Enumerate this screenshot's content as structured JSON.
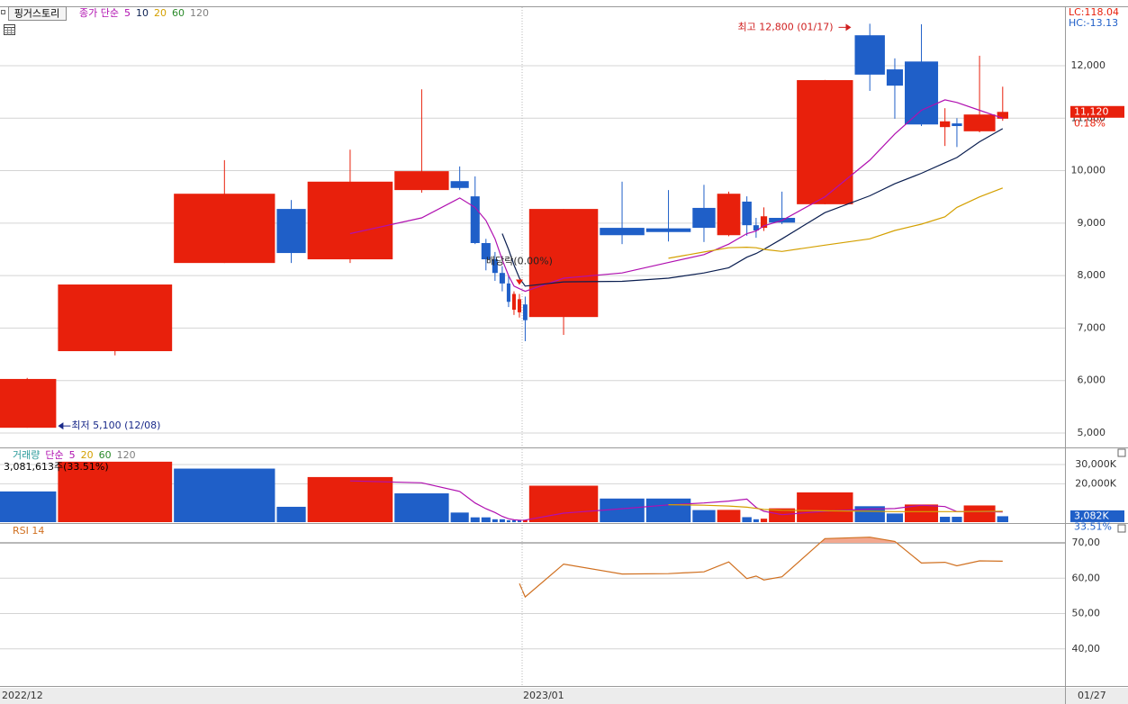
{
  "chart_data": {
    "type": "candlestick",
    "title": "핑거스토리",
    "price_legend_prefix": "종가 단순",
    "categories": [
      "2022/12",
      null,
      null,
      null,
      null,
      null,
      null,
      null,
      null,
      null,
      null,
      null,
      null,
      null,
      "2023/01",
      null,
      null,
      null,
      null,
      null,
      null,
      null,
      null,
      null,
      null,
      null,
      null,
      null,
      null,
      null,
      null,
      null
    ],
    "open": [
      5100,
      6560,
      8240,
      9270,
      8310,
      9630,
      9800,
      9510,
      8620,
      8310,
      8050,
      7850,
      7350,
      7300,
      7450,
      7210,
      8910,
      8900,
      9290,
      8770,
      9410,
      8960,
      8910,
      9100,
      9360,
      12580,
      11930,
      12080,
      10830,
      10900,
      10750,
      10990
    ],
    "high": [
      6050,
      7830,
      10200,
      9440,
      10400,
      11550,
      10080,
      9890,
      8700,
      8450,
      8180,
      8000,
      7700,
      7650,
      7600,
      9270,
      9790,
      9630,
      9730,
      9600,
      9510,
      9100,
      9300,
      9600,
      11730,
      12800,
      12140,
      12790,
      11190,
      11000,
      12190,
      11600
    ],
    "low": [
      5100,
      6480,
      8240,
      8240,
      8240,
      9580,
      9630,
      8600,
      8100,
      7900,
      7700,
      7400,
      7250,
      7200,
      6750,
      6870,
      8600,
      8650,
      8640,
      8750,
      8760,
      8720,
      8850,
      8980,
      9357,
      11520,
      10990,
      10850,
      10470,
      10450,
      10730,
      10950
    ],
    "close": [
      6030,
      7830,
      9560,
      8430,
      9790,
      9990,
      9670,
      8620,
      8310,
      8050,
      7850,
      7500,
      7650,
      7550,
      7150,
      9270,
      8770,
      8830,
      8910,
      9560,
      8960,
      8860,
      9130,
      9010,
      11725,
      11830,
      11620,
      10880,
      10940,
      10850,
      11070,
      11120
    ],
    "up_color": "#e8200c",
    "down_color": "#1f5fc8",
    "series": [
      {
        "name": "5",
        "color": "#b010b0",
        "values": [
          null,
          null,
          null,
          null,
          8800,
          9100,
          9480,
          9300,
          9050,
          8700,
          8300,
          8000,
          7800,
          7750,
          7700,
          7950,
          8050,
          8250,
          8400,
          8600,
          8800,
          8850,
          8950,
          9050,
          9500,
          10200,
          10700,
          11150,
          11350,
          11300,
          11150,
          11000
        ]
      },
      {
        "name": "10",
        "color": "#0a1e50",
        "values": [
          null,
          null,
          null,
          null,
          null,
          null,
          null,
          null,
          null,
          null,
          8800,
          8500,
          8200,
          7950,
          7800,
          7880,
          7890,
          7950,
          8050,
          8150,
          8350,
          8420,
          8500,
          8700,
          9200,
          9520,
          9750,
          9950,
          10150,
          10250,
          10550,
          10800
        ]
      },
      {
        "name": "20",
        "color": "#d4a000",
        "values": [
          null,
          null,
          null,
          null,
          null,
          null,
          null,
          null,
          null,
          null,
          null,
          null,
          null,
          null,
          null,
          null,
          null,
          8330,
          8450,
          8530,
          8540,
          8530,
          8500,
          8460,
          8580,
          8700,
          8860,
          8980,
          9120,
          9300,
          9500,
          9670
        ]
      },
      {
        "name": "60",
        "color": "#2a8a2a"
      },
      {
        "name": "120",
        "color": "#808080"
      }
    ],
    "ylim": [
      4725,
      13115
    ],
    "yticks": [
      {
        "value": 5000,
        "label": "5,000"
      },
      {
        "value": 6000,
        "label": "6,000"
      },
      {
        "value": 7000,
        "label": "7,000"
      },
      {
        "value": 8000,
        "label": "8,000"
      },
      {
        "value": 9000,
        "label": "9,000"
      },
      {
        "value": 10000,
        "label": "10,000"
      },
      {
        "value": 11000,
        "label": "11,000"
      },
      {
        "value": 12000,
        "label": "12,000"
      }
    ],
    "grid": true,
    "annotations": {
      "high": "최고 12,800 (01/17)",
      "low": "최저 5,100 (12/08)",
      "ex_dividend": "배당락(0.00%)"
    },
    "lc": "LC:118.04",
    "hc": "HC:-13.13",
    "last_price": {
      "value": 11120,
      "label": "11,120",
      "change": "0.18%"
    },
    "volume": {
      "legend_prefix": "거래량",
      "legend_method": "단순",
      "values": [
        16000,
        31500,
        27900,
        8000,
        23500,
        15000,
        5000,
        2500,
        2500,
        1500,
        1500,
        1000,
        1000,
        1000,
        1200,
        19000,
        12300,
        12300,
        6300,
        6400,
        2600,
        1500,
        1800,
        7200,
        15500,
        8300,
        4500,
        9200,
        2800,
        2800,
        8700,
        3081.613
      ],
      "series": [
        {
          "name": "5",
          "color": "#b010b0",
          "values": [
            null,
            null,
            null,
            null,
            21500,
            20500,
            16000,
            10000,
            7000,
            5000,
            3000,
            1800,
            1200,
            1000,
            1100,
            4700,
            7000,
            9000,
            10000,
            11000,
            12000,
            7700,
            5700,
            3900,
            5700,
            6800,
            7100,
            8800,
            8100,
            5500,
            5500,
            5300
          ]
        },
        {
          "name": "20",
          "color": "#d4a000",
          "values": [
            null,
            null,
            null,
            null,
            null,
            null,
            null,
            null,
            null,
            null,
            null,
            null,
            null,
            null,
            null,
            null,
            null,
            9100,
            8800,
            8400,
            7800,
            7200,
            6600,
            6200,
            5900,
            5700,
            5500,
            5500,
            5500,
            5500,
            5600,
            5700
          ]
        },
        {
          "name": "60",
          "color": "#2a8a2a"
        },
        {
          "name": "120",
          "color": "#808080"
        }
      ],
      "ylim": [
        0,
        38000
      ],
      "yticks": [
        {
          "value": 30000,
          "label": "30,000K"
        },
        {
          "value": 20000,
          "label": "20,000K"
        }
      ],
      "readout": "3,081,613주(33.51%)",
      "last": {
        "value": 3082,
        "label": "3,082K",
        "ratio": "33.51%"
      }
    },
    "rsi": {
      "name": "RSI 14",
      "color": "#d07020",
      "fill_color": "#f2a890",
      "values": [
        null,
        null,
        null,
        null,
        null,
        null,
        null,
        null,
        null,
        null,
        null,
        null,
        null,
        58.5,
        54.7,
        64,
        61.2,
        61.3,
        61.8,
        64.6,
        59.9,
        60.6,
        59.5,
        60.4,
        71.2,
        71.6,
        70.4,
        64.3,
        64.5,
        63.5,
        64.9,
        64.8
      ],
      "ylim": [
        29.5,
        75.1
      ],
      "yticks": [
        {
          "value": 70,
          "label": "70,00"
        },
        {
          "value": 60,
          "label": "60,00"
        },
        {
          "value": 50,
          "label": "50,00"
        },
        {
          "value": 40,
          "label": "40,00"
        }
      ],
      "overbought": 70
    },
    "last_date": "01/27"
  }
}
